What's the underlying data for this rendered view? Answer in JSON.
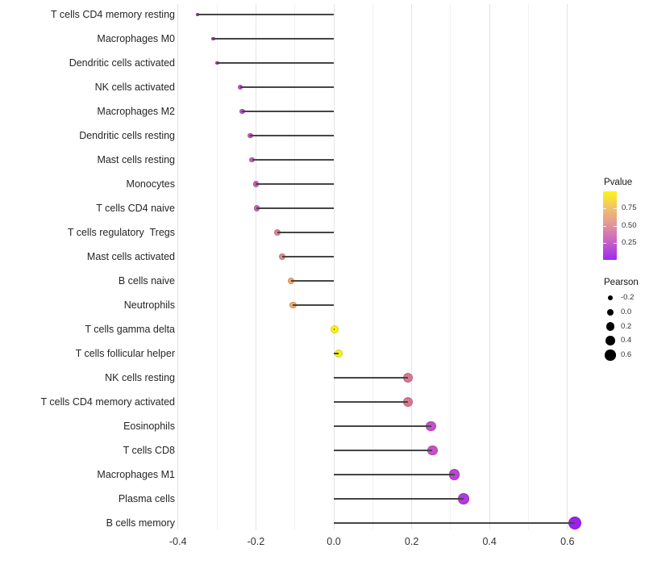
{
  "chart_data": {
    "type": "lollipop",
    "title": "",
    "xlabel": "",
    "ylabel": "",
    "grid": "vertical-only",
    "legend_position": "right",
    "xlim": [
      -0.43,
      0.655
    ],
    "x_ticks": [
      {
        "value": -0.4,
        "label": "-0.4"
      },
      {
        "value": -0.2,
        "label": "-0.2"
      },
      {
        "value": 0.0,
        "label": "0.0"
      },
      {
        "value": 0.2,
        "label": "0.2"
      },
      {
        "value": 0.4,
        "label": "0.4"
      },
      {
        "value": 0.6,
        "label": "0.6"
      }
    ],
    "x_minor_gridlines": [
      -0.3,
      -0.1,
      0.1,
      0.3,
      0.5
    ],
    "points": [
      {
        "label": "T cells CD4 memory resting",
        "pearson": -0.35,
        "color": "#A43BD3"
      },
      {
        "label": "Macrophages M0",
        "pearson": -0.31,
        "color": "#A93DD1"
      },
      {
        "label": "Dendritic cells activated",
        "pearson": -0.3,
        "color": "#AC41CE"
      },
      {
        "label": "NK cells activated",
        "pearson": -0.24,
        "color": "#BA4FC7"
      },
      {
        "label": "Macrophages M2",
        "pearson": -0.235,
        "color": "#BB51C5"
      },
      {
        "label": "Dendritic cells resting",
        "pearson": -0.215,
        "color": "#C159C0"
      },
      {
        "label": "Mast cells resting",
        "pearson": -0.21,
        "color": "#C55FBB"
      },
      {
        "label": "Monocytes",
        "pearson": -0.2,
        "color": "#C663B6"
      },
      {
        "label": "T cells CD4 naive",
        "pearson": -0.198,
        "color": "#C866B2"
      },
      {
        "label": "T cells regulatory  Tregs",
        "pearson": -0.145,
        "color": "#DC8495"
      },
      {
        "label": "Mast cells activated",
        "pearson": -0.132,
        "color": "#DF8A88"
      },
      {
        "label": "B cells naive",
        "pearson": -0.11,
        "color": "#EDA96D"
      },
      {
        "label": "Neutrophils",
        "pearson": -0.105,
        "color": "#EFAC68"
      },
      {
        "label": "T cells gamma delta",
        "pearson": 0.002,
        "color": "#F8F411"
      },
      {
        "label": "T cells follicular helper",
        "pearson": 0.012,
        "color": "#F7F115"
      },
      {
        "label": "NK cells resting",
        "pearson": 0.19,
        "color": "#D5798F"
      },
      {
        "label": "T cells CD4 memory activated",
        "pearson": 0.19,
        "color": "#D5798F"
      },
      {
        "label": "Eosinophils",
        "pearson": 0.25,
        "color": "#C751C8"
      },
      {
        "label": "T cells CD8",
        "pearson": 0.253,
        "color": "#C751C8"
      },
      {
        "label": "Macrophages M1",
        "pearson": 0.31,
        "color": "#BB43D6"
      },
      {
        "label": "Plasma cells",
        "pearson": 0.333,
        "color": "#B139E2"
      },
      {
        "label": "B cells memory",
        "pearson": 0.62,
        "color": "#9C21EE"
      }
    ],
    "legends": {
      "pvalue": {
        "title": "Pvalue",
        "range": [
          0,
          1
        ],
        "ticks": [
          {
            "value": 0.75,
            "label": "0.75"
          },
          {
            "value": 0.5,
            "label": "0.50"
          },
          {
            "value": 0.25,
            "label": "0.25"
          }
        ],
        "gradient_top_to_bottom": [
          "#FAF514",
          "#F1C06E",
          "#E2929D",
          "#C55FC7",
          "#A028F0"
        ]
      },
      "pearson": {
        "title": "Pearson",
        "dot_color": "#000000",
        "ticks": [
          {
            "value": -0.2,
            "label": "-0.2"
          },
          {
            "value": 0.0,
            "label": "0.0"
          },
          {
            "value": 0.2,
            "label": "0.2"
          },
          {
            "value": 0.4,
            "label": "0.4"
          },
          {
            "value": 0.6,
            "label": "0.6"
          }
        ]
      }
    }
  }
}
